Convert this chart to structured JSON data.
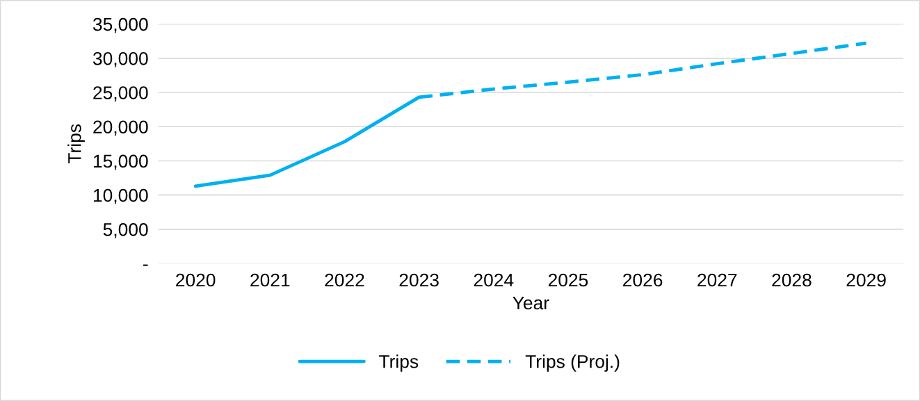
{
  "chart_data": {
    "type": "line",
    "xlabel": "Year",
    "ylabel": "Trips",
    "categories": [
      "2020",
      "2021",
      "2022",
      "2023",
      "2024",
      "2025",
      "2026",
      "2027",
      "2028",
      "2029"
    ],
    "series": [
      {
        "name": "Trips",
        "color": "#00b0f0",
        "line_style": "solid",
        "values": [
          11300,
          12900,
          17800,
          24300,
          null,
          null,
          null,
          null,
          null,
          null
        ]
      },
      {
        "name": "Trips (Proj.)",
        "color": "#00b0f0",
        "line_style": "dashed",
        "values": [
          null,
          null,
          null,
          24300,
          25500,
          26500,
          27600,
          29200,
          30700,
          32200
        ]
      }
    ],
    "ylim": [
      0,
      35000
    ],
    "yticks": [
      {
        "value": 0,
        "label": "-"
      },
      {
        "value": 5000,
        "label": "5,000"
      },
      {
        "value": 10000,
        "label": "10,000"
      },
      {
        "value": 15000,
        "label": "15,000"
      },
      {
        "value": 20000,
        "label": "20,000"
      },
      {
        "value": 25000,
        "label": "25,000"
      },
      {
        "value": 30000,
        "label": "30,000"
      },
      {
        "value": 35000,
        "label": "35,000"
      }
    ],
    "grid": "y",
    "legend": "bottom",
    "marker": "none"
  }
}
